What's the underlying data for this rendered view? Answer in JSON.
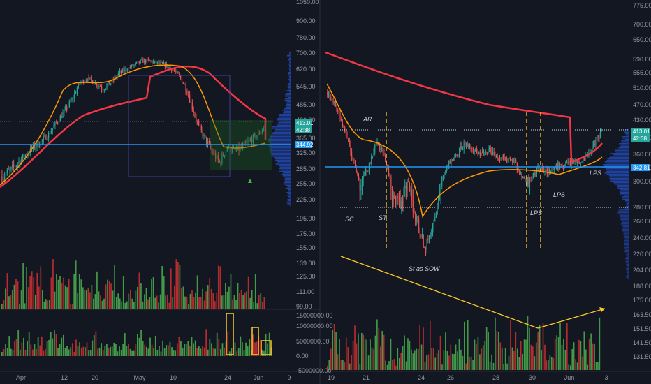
{
  "chart_data": [
    {
      "type": "candlestick",
      "panel": "left",
      "x_ticks": [
        "Apr",
        "12",
        "20",
        "May",
        "10",
        "24",
        "Jun",
        "9"
      ],
      "y_ticks": [
        "1050.00",
        "900.00",
        "780.00",
        "700.00",
        "620.00",
        "545.00",
        "485.00",
        "430.00",
        "365.00",
        "325.00",
        "285.00",
        "255.00",
        "225.00",
        "195.00",
        "175.00",
        "155.00",
        "139.00",
        "125.00",
        "111.00",
        "99.00"
      ],
      "price_labels": {
        "last": "413.01",
        "countdown": "42:38",
        "poc": "344.92"
      },
      "price_range": [
        99,
        1050
      ],
      "close_path": [
        270,
        280,
        300,
        320,
        340,
        355,
        380,
        420,
        460,
        500,
        560,
        580,
        560,
        540,
        560,
        600,
        620,
        640,
        660,
        660,
        650,
        640,
        620,
        580,
        520,
        430,
        370,
        330,
        300,
        340,
        330,
        340,
        360,
        380,
        413
      ],
      "volume_axis": [
        "15000000.00",
        "10000000.00",
        "5000000.00",
        "0.00",
        "-5000000.00"
      ]
    },
    {
      "type": "candlestick",
      "panel": "right",
      "x_ticks": [
        "19",
        "21",
        "24",
        "26",
        "28",
        "30",
        "Jun",
        "3"
      ],
      "y_ticks": [
        "775.00",
        "700.00",
        "650.00",
        "590.00",
        "555.00",
        "510.00",
        "470.00",
        "430.00",
        "390.00",
        "360.00",
        "330.00",
        "300.00",
        "280.00",
        "260.00",
        "240.00",
        "220.00",
        "204.00",
        "188.00",
        "175.00",
        "163.50",
        "151.50",
        "141.50",
        "131.50"
      ],
      "price_labels": {
        "last": "413.01",
        "countdown": "42:38",
        "poc": "342.81"
      },
      "price_range": [
        125,
        800
      ],
      "close_path": [
        500,
        470,
        410,
        360,
        300,
        330,
        380,
        360,
        290,
        280,
        300,
        260,
        230,
        250,
        300,
        340,
        360,
        380,
        370,
        360,
        370,
        355,
        350,
        345,
        310,
        300,
        330,
        320,
        330,
        335,
        340,
        345,
        355,
        380,
        413
      ],
      "annotations": [
        "AR",
        "SC",
        "ST",
        "St as SOW",
        "LPS",
        "LPS",
        "LPS"
      ]
    }
  ],
  "colors": {
    "background": "#131722",
    "up": "#26a69a",
    "down": "#ef5350",
    "vwap": "#f23645",
    "ema": "#ff9800",
    "poc_line": "#2196f3",
    "trend": "#ffca28",
    "volume_up": "#4caf50",
    "volume_down": "#d32f2f"
  }
}
